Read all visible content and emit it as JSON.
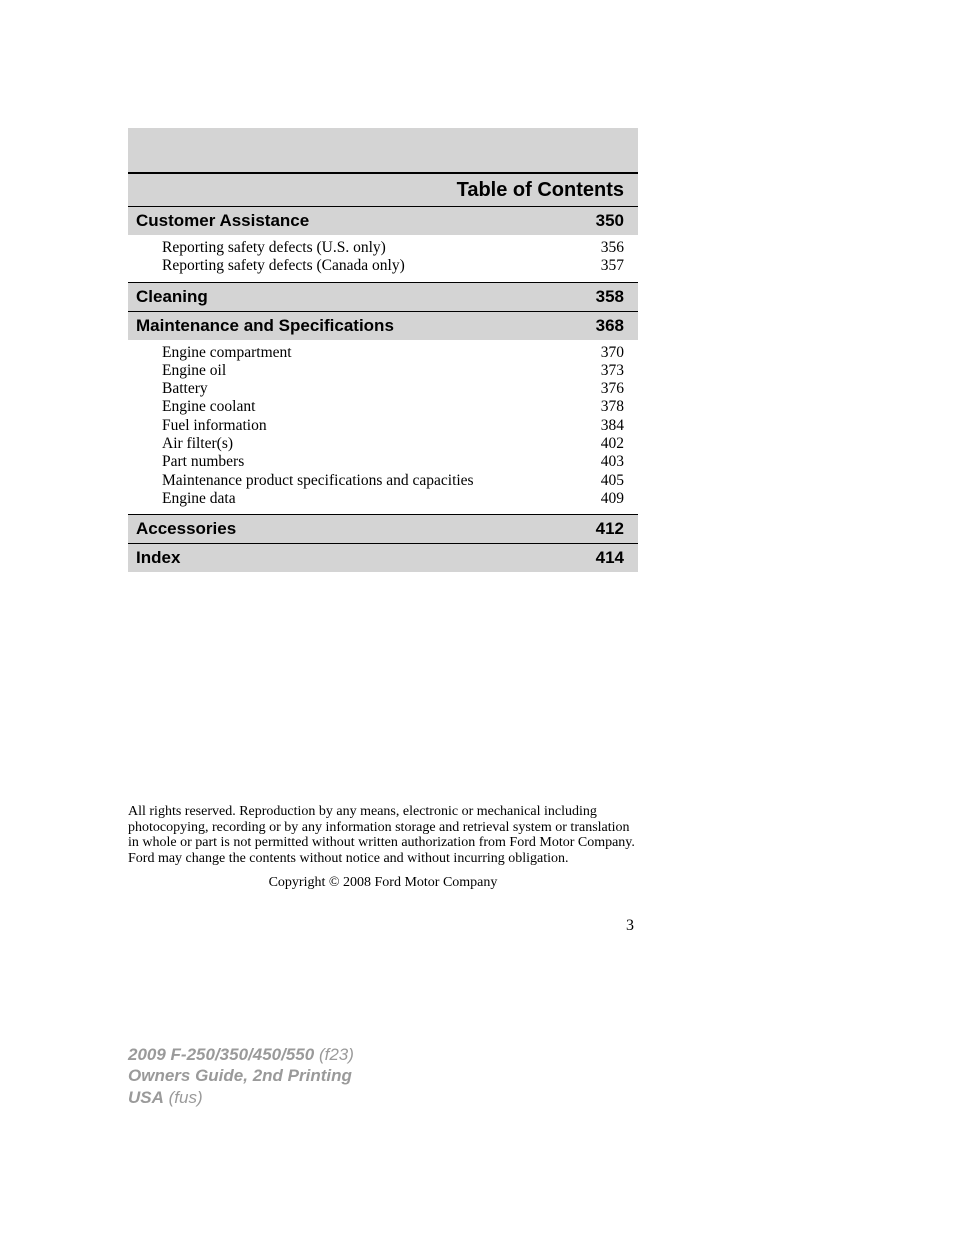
{
  "title": "Table of Contents",
  "sections": [
    {
      "title": "Customer Assistance",
      "page": "350",
      "items": [
        {
          "label": "Reporting safety defects (U.S. only)",
          "page": "356"
        },
        {
          "label": "Reporting safety defects (Canada only)",
          "page": "357"
        }
      ]
    },
    {
      "title": "Cleaning",
      "page": "358",
      "items": []
    },
    {
      "title": "Maintenance and Specifications",
      "page": "368",
      "items": [
        {
          "label": "Engine compartment",
          "page": "370"
        },
        {
          "label": "Engine oil",
          "page": "373"
        },
        {
          "label": "Battery",
          "page": "376"
        },
        {
          "label": "Engine coolant",
          "page": "378"
        },
        {
          "label": "Fuel information",
          "page": "384"
        },
        {
          "label": "Air filter(s)",
          "page": "402"
        },
        {
          "label": "Part numbers",
          "page": "403"
        },
        {
          "label": "Maintenance product specifications and capacities",
          "page": "405"
        },
        {
          "label": "Engine data",
          "page": "409"
        }
      ]
    },
    {
      "title": "Accessories",
      "page": "412",
      "items": []
    },
    {
      "title": "Index",
      "page": "414",
      "items": []
    }
  ],
  "legal": "All rights reserved. Reproduction by any means, electronic or mechanical including photocopying, recording or by any information storage and retrieval system or translation in whole or part is not permitted without written authorization from Ford Motor Company. Ford may change the contents without notice and without incurring obligation.",
  "copyright": "Copyright © 2008 Ford Motor Company",
  "page_number": "3",
  "footer": {
    "line1_bold": "2009 F-250/350/450/550",
    "line1_rest": " (f23)",
    "line2": "Owners Guide, 2nd Printing",
    "line3_bold": "USA",
    "line3_rest": " (fus)"
  },
  "colors": {
    "gray_bg": "#d4d4d4",
    "footer_text": "#9a9a9a"
  },
  "fonts": {
    "heading": "Arial",
    "body": "Georgia"
  }
}
